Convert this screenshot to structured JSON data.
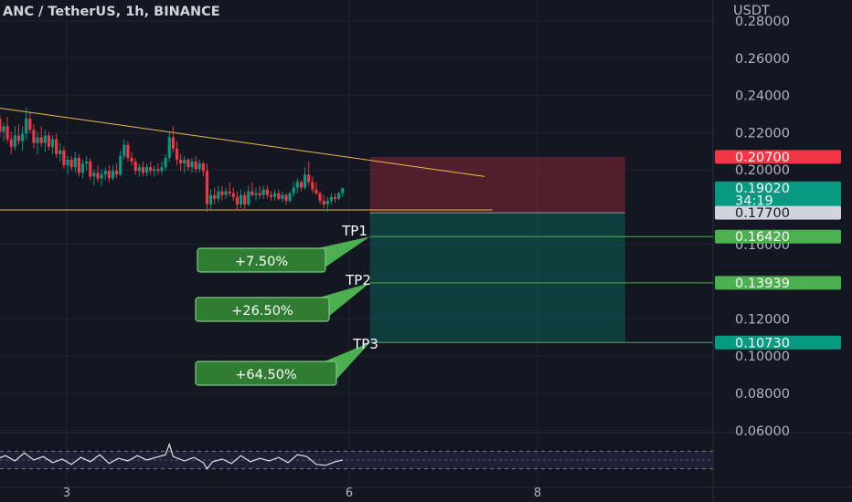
{
  "chart_data": {
    "type": "candlestick",
    "title": "ANC / TetherUS, 1h, BINANCE",
    "yunit": "USDT",
    "ylim": [
      0.05,
      0.285
    ],
    "y_ticks": [
      "0.28000",
      "0.26000",
      "0.24000",
      "0.22000",
      "0.20000",
      "0.16000",
      "0.12000",
      "0.10000",
      "0.08000",
      "0.06000"
    ],
    "x_ticks": [
      {
        "label": "3",
        "day": 3
      },
      {
        "label": "6",
        "day": 6
      },
      {
        "label": "8",
        "day": 8
      }
    ],
    "candles": [
      [
        2.25,
        0.2305,
        0.2335,
        0.2255,
        0.2275
      ],
      [
        2.29,
        0.2275,
        0.2295,
        0.2175,
        0.2205
      ],
      [
        2.33,
        0.2205,
        0.2255,
        0.2155,
        0.2235
      ],
      [
        2.37,
        0.2235,
        0.2285,
        0.2145,
        0.2165
      ],
      [
        2.41,
        0.2165,
        0.2205,
        0.2085,
        0.2125
      ],
      [
        2.45,
        0.2125,
        0.2235,
        0.2105,
        0.2185
      ],
      [
        2.49,
        0.2185,
        0.2245,
        0.2135,
        0.2155
      ],
      [
        2.53,
        0.2155,
        0.2235,
        0.2105,
        0.2195
      ],
      [
        2.57,
        0.2195,
        0.2335,
        0.2165,
        0.2275
      ],
      [
        2.61,
        0.2275,
        0.2305,
        0.2195,
        0.2215
      ],
      [
        2.65,
        0.2215,
        0.2245,
        0.2115,
        0.2145
      ],
      [
        2.69,
        0.2145,
        0.2205,
        0.2085,
        0.2175
      ],
      [
        2.73,
        0.2175,
        0.2235,
        0.2125,
        0.2145
      ],
      [
        2.77,
        0.2145,
        0.2215,
        0.2095,
        0.2185
      ],
      [
        2.81,
        0.2185,
        0.2205,
        0.2105,
        0.2125
      ],
      [
        2.85,
        0.2125,
        0.2185,
        0.2085,
        0.2165
      ],
      [
        2.89,
        0.2165,
        0.2195,
        0.2065,
        0.2085
      ],
      [
        2.93,
        0.2085,
        0.2145,
        0.2045,
        0.2105
      ],
      [
        2.97,
        0.2105,
        0.2125,
        0.2005,
        0.2025
      ],
      [
        3.01,
        0.2025,
        0.2075,
        0.1975,
        0.2055
      ],
      [
        3.05,
        0.2055,
        0.2075,
        0.1995,
        0.2015
      ],
      [
        3.09,
        0.2015,
        0.2095,
        0.1985,
        0.2065
      ],
      [
        3.13,
        0.2065,
        0.2085,
        0.1965,
        0.1985
      ],
      [
        3.17,
        0.1985,
        0.2055,
        0.1955,
        0.2035
      ],
      [
        3.21,
        0.2035,
        0.2075,
        0.1995,
        0.2045
      ],
      [
        3.25,
        0.2045,
        0.2065,
        0.1945,
        0.1965
      ],
      [
        3.29,
        0.1965,
        0.2005,
        0.1915,
        0.1985
      ],
      [
        3.33,
        0.1985,
        0.2025,
        0.1935,
        0.1955
      ],
      [
        3.37,
        0.1955,
        0.2005,
        0.1915,
        0.1975
      ],
      [
        3.41,
        0.1975,
        0.2015,
        0.1945,
        0.1995
      ],
      [
        3.45,
        0.1995,
        0.2025,
        0.1935,
        0.1955
      ],
      [
        3.49,
        0.1955,
        0.2025,
        0.1945,
        0.1995
      ],
      [
        3.53,
        0.1995,
        0.2035,
        0.1955,
        0.1975
      ],
      [
        3.57,
        0.1975,
        0.2105,
        0.1965,
        0.2075
      ],
      [
        3.61,
        0.2075,
        0.2165,
        0.2055,
        0.2135
      ],
      [
        3.65,
        0.2135,
        0.2155,
        0.2045,
        0.2065
      ],
      [
        3.69,
        0.2065,
        0.2095,
        0.2025,
        0.2045
      ],
      [
        3.73,
        0.2045,
        0.2065,
        0.1975,
        0.1995
      ],
      [
        3.77,
        0.1995,
        0.2035,
        0.1965,
        0.2015
      ],
      [
        3.81,
        0.2015,
        0.2045,
        0.1965,
        0.1985
      ],
      [
        3.85,
        0.1985,
        0.2035,
        0.1965,
        0.2015
      ],
      [
        3.89,
        0.2015,
        0.2045,
        0.1975,
        0.1995
      ],
      [
        3.93,
        0.1995,
        0.2025,
        0.1965,
        0.2005
      ],
      [
        3.97,
        0.2005,
        0.2035,
        0.1975,
        0.1995
      ],
      [
        4.01,
        0.1995,
        0.2045,
        0.1975,
        0.2015
      ],
      [
        4.05,
        0.2015,
        0.2085,
        0.1995,
        0.2065
      ],
      [
        4.09,
        0.2065,
        0.2205,
        0.2045,
        0.2175
      ],
      [
        4.13,
        0.2175,
        0.2235,
        0.2095,
        0.2115
      ],
      [
        4.17,
        0.2115,
        0.2155,
        0.2025,
        0.2055
      ],
      [
        4.21,
        0.2055,
        0.2085,
        0.1995,
        0.2035
      ],
      [
        4.25,
        0.2035,
        0.2075,
        0.1985,
        0.2055
      ],
      [
        4.29,
        0.2055,
        0.2065,
        0.1995,
        0.2015
      ],
      [
        4.33,
        0.2015,
        0.2065,
        0.1985,
        0.2045
      ],
      [
        4.37,
        0.2045,
        0.2075,
        0.1985,
        0.2005
      ],
      [
        4.41,
        0.2005,
        0.2055,
        0.1985,
        0.2035
      ],
      [
        4.45,
        0.2035,
        0.2045,
        0.1965,
        0.1995
      ],
      [
        4.49,
        0.1995,
        0.2035,
        0.1775,
        0.1815
      ],
      [
        4.53,
        0.1815,
        0.1895,
        0.1785,
        0.1865
      ],
      [
        4.57,
        0.1865,
        0.1905,
        0.1815,
        0.1845
      ],
      [
        4.61,
        0.1845,
        0.1915,
        0.1825,
        0.1885
      ],
      [
        4.65,
        0.1885,
        0.1915,
        0.1835,
        0.1865
      ],
      [
        4.69,
        0.1865,
        0.1905,
        0.1845,
        0.1885
      ],
      [
        4.73,
        0.1885,
        0.1935,
        0.1855,
        0.1875
      ],
      [
        4.77,
        0.1875,
        0.1905,
        0.1835,
        0.1855
      ],
      [
        4.81,
        0.1855,
        0.1885,
        0.1785,
        0.1815
      ],
      [
        4.85,
        0.1815,
        0.1895,
        0.1795,
        0.1865
      ],
      [
        4.89,
        0.1865,
        0.1885,
        0.1785,
        0.1815
      ],
      [
        4.93,
        0.1815,
        0.1915,
        0.1805,
        0.1885
      ],
      [
        4.97,
        0.1885,
        0.1935,
        0.1855,
        0.1865
      ],
      [
        5.01,
        0.1865,
        0.1905,
        0.1835,
        0.1875
      ],
      [
        5.05,
        0.1875,
        0.1915,
        0.1845,
        0.1865
      ],
      [
        5.09,
        0.1865,
        0.1915,
        0.1845,
        0.1895
      ],
      [
        5.13,
        0.1895,
        0.1915,
        0.1845,
        0.1865
      ],
      [
        5.17,
        0.1865,
        0.1885,
        0.1835,
        0.1855
      ],
      [
        5.21,
        0.1855,
        0.1895,
        0.1835,
        0.1875
      ],
      [
        5.25,
        0.1875,
        0.1895,
        0.1835,
        0.1845
      ],
      [
        5.29,
        0.1845,
        0.1885,
        0.1825,
        0.1865
      ],
      [
        5.33,
        0.1865,
        0.1875,
        0.1815,
        0.1835
      ],
      [
        5.37,
        0.1835,
        0.1885,
        0.1825,
        0.1875
      ],
      [
        5.41,
        0.1875,
        0.1935,
        0.1855,
        0.1905
      ],
      [
        5.45,
        0.1905,
        0.1955,
        0.1875,
        0.1935
      ],
      [
        5.49,
        0.1935,
        0.1945,
        0.1885,
        0.1905
      ],
      [
        5.53,
        0.1905,
        0.2015,
        0.1895,
        0.1975
      ],
      [
        5.57,
        0.1975,
        0.2045,
        0.1915,
        0.1935
      ],
      [
        5.61,
        0.1935,
        0.1965,
        0.1875,
        0.1895
      ],
      [
        5.65,
        0.1895,
        0.1935,
        0.1865,
        0.1875
      ],
      [
        5.69,
        0.1875,
        0.1885,
        0.1815,
        0.1835
      ],
      [
        5.73,
        0.1835,
        0.1865,
        0.1795,
        0.1815
      ],
      [
        5.77,
        0.1815,
        0.1855,
        0.1775,
        0.1835
      ],
      [
        5.81,
        0.1835,
        0.1875,
        0.1815,
        0.1855
      ],
      [
        5.85,
        0.1855,
        0.1875,
        0.1825,
        0.1845
      ],
      [
        5.89,
        0.1845,
        0.1885,
        0.1835,
        0.1875
      ],
      [
        5.93,
        0.1875,
        0.1905,
        0.1855,
        0.1902
      ]
    ],
    "trendlines": [
      {
        "name": "descending-resistance",
        "points": [
          [
            2.25,
            0.2335
          ],
          [
            7.44,
            0.1965
          ]
        ]
      },
      {
        "name": "horizontal-support",
        "points": [
          [
            2.25,
            0.1785
          ],
          [
            7.52,
            0.1785
          ]
        ]
      }
    ],
    "position": {
      "x_start": 6.22,
      "x_end": 8.93,
      "stop": 0.207,
      "entry": 0.177,
      "target": 0.1073,
      "tp_levels": [
        0.1642,
        0.13939,
        0.1073
      ]
    },
    "tp_labels": [
      "TP1",
      "TP2",
      "TP3"
    ],
    "tp_gains": [
      "+7.50%",
      "+26.50%",
      "+64.50%"
    ],
    "price_tags": [
      {
        "text": "0.20700",
        "value": 0.207,
        "color": "#f23645"
      },
      {
        "text": "0.19020",
        "value": 0.1902,
        "color": "#089981",
        "sub": "34:19"
      },
      {
        "text": "0.17700",
        "value": 0.177,
        "color": "#d1d4dc"
      },
      {
        "text": "0.16420",
        "value": 0.1642,
        "color": "#4caf50"
      },
      {
        "text": "0.13939",
        "value": 0.13939,
        "color": "#4caf50"
      },
      {
        "text": "0.10730",
        "value": 0.1073,
        "color": "#089981"
      }
    ],
    "grid": true,
    "indicator": {
      "type": "oscillator",
      "x": [
        2.25,
        2.35,
        2.45,
        2.55,
        2.65,
        2.75,
        2.85,
        2.95,
        3.05,
        3.15,
        3.25,
        3.35,
        3.45,
        3.55,
        3.65,
        3.75,
        3.85,
        3.95,
        4.05,
        4.09,
        4.13,
        4.25,
        4.35,
        4.45,
        4.49,
        4.55,
        4.65,
        4.75,
        4.85,
        4.95,
        5.05,
        5.15,
        5.25,
        5.35,
        5.45,
        5.55,
        5.65,
        5.75,
        5.85,
        5.93
      ],
      "values": [
        52,
        60,
        48,
        66,
        50,
        58,
        44,
        52,
        40,
        56,
        46,
        62,
        42,
        54,
        48,
        60,
        50,
        56,
        62,
        86,
        58,
        48,
        56,
        44,
        30,
        46,
        52,
        42,
        60,
        46,
        54,
        48,
        56,
        44,
        62,
        58,
        40,
        38,
        46,
        50
      ],
      "ylim": [
        0,
        100
      ],
      "band": [
        30,
        70
      ]
    },
    "colors": {
      "up": "#089981",
      "down": "#f23645",
      "trendline": "#f0b94a"
    }
  }
}
